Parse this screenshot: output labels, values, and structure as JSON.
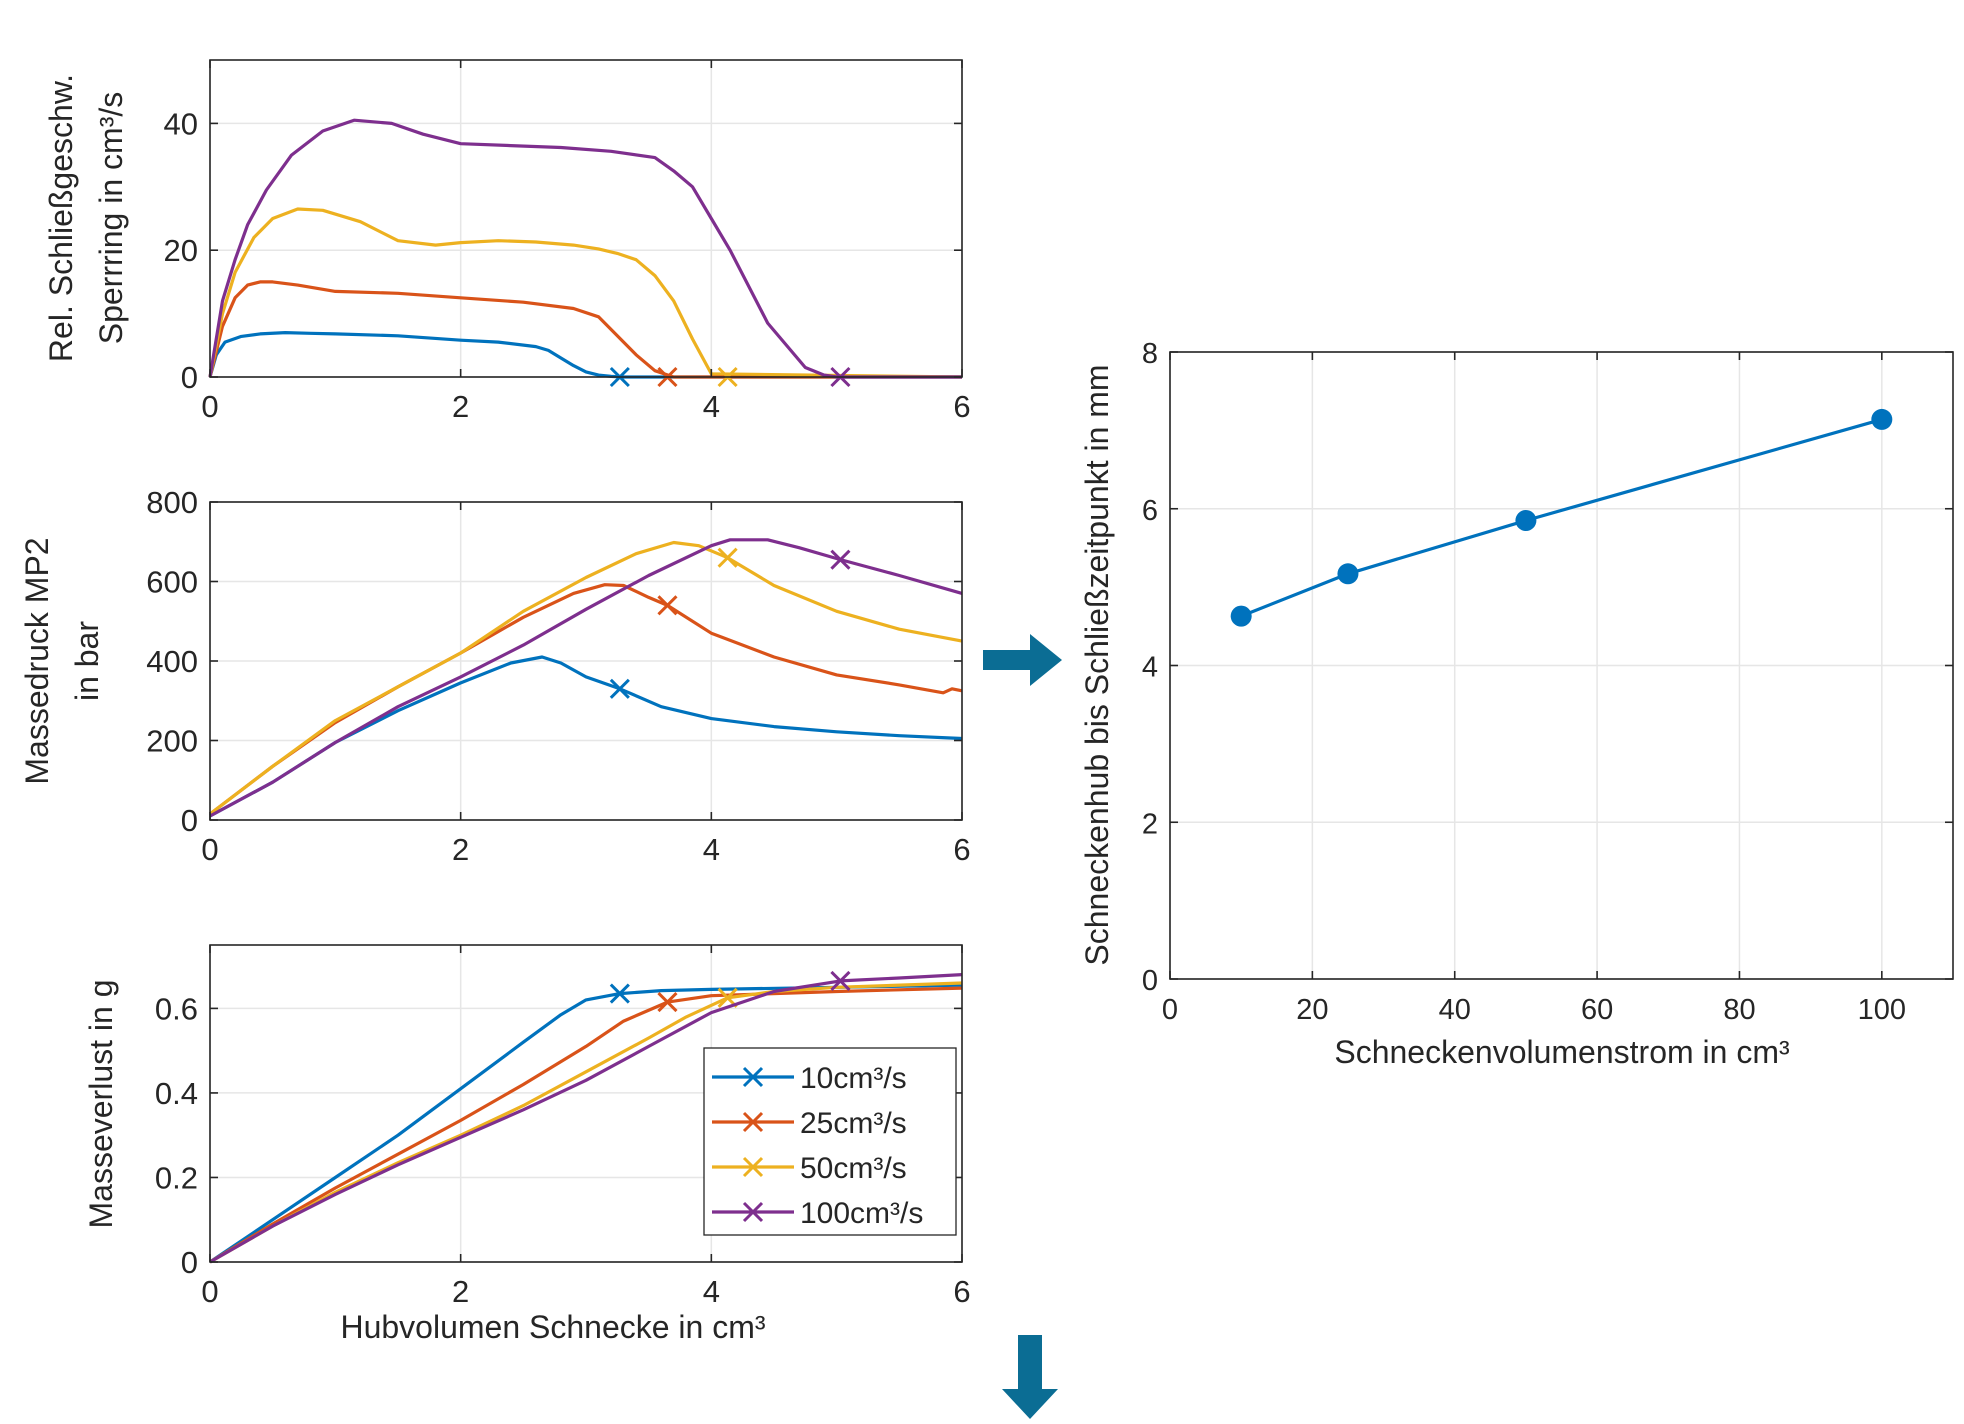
{
  "colors": {
    "s10": "#0072BD",
    "s25": "#D95319",
    "s50": "#EDB120",
    "s100": "#7E2F8E",
    "arrow": "#0B6D94",
    "grid": "#e6e6e6",
    "axis": "#262626"
  },
  "chart_data": [
    {
      "id": "speed",
      "type": "line",
      "ylabel_lines": [
        "Rel. Schließgeschw.",
        "Sperrring in cm³/s"
      ],
      "xlabel": "",
      "xlim": [
        0,
        6
      ],
      "ylim": [
        0,
        50
      ],
      "xticks": [
        0,
        2,
        4,
        6
      ],
      "yticks": [
        0,
        20,
        40
      ],
      "grid": true,
      "series": [
        {
          "key": "s10",
          "x": [
            0,
            0.05,
            0.12,
            0.25,
            0.4,
            0.6,
            0.8,
            1.0,
            1.5,
            2.0,
            2.3,
            2.6,
            2.7,
            2.8,
            2.9,
            3.0,
            3.1,
            3.2,
            3.3,
            4.0,
            6.0
          ],
          "y": [
            0,
            3.5,
            5.5,
            6.4,
            6.8,
            7.0,
            6.9,
            6.8,
            6.5,
            5.8,
            5.5,
            4.8,
            4.2,
            3.0,
            1.8,
            0.8,
            0.3,
            0.1,
            0.0,
            0.0,
            0.0
          ],
          "marker": [
            3.27,
            0
          ]
        },
        {
          "key": "s25",
          "x": [
            0,
            0.1,
            0.2,
            0.3,
            0.4,
            0.5,
            0.7,
            1.0,
            1.5,
            2.0,
            2.5,
            2.9,
            3.1,
            3.25,
            3.4,
            3.55,
            3.7,
            4.0,
            6.0
          ],
          "y": [
            0,
            8,
            12.5,
            14.5,
            15,
            15,
            14.5,
            13.5,
            13.2,
            12.5,
            11.8,
            10.8,
            9.5,
            6.5,
            3.5,
            1.0,
            0.0,
            0.0,
            0.0
          ],
          "marker": [
            3.65,
            0
          ]
        },
        {
          "key": "s50",
          "x": [
            0,
            0.1,
            0.2,
            0.35,
            0.5,
            0.7,
            0.9,
            1.2,
            1.5,
            1.8,
            2.0,
            2.3,
            2.6,
            2.9,
            3.1,
            3.25,
            3.4,
            3.55,
            3.7,
            3.85,
            4.0,
            6.0
          ],
          "y": [
            0,
            10,
            16.5,
            22,
            25,
            26.5,
            26.3,
            24.5,
            21.5,
            20.8,
            21.2,
            21.5,
            21.3,
            20.8,
            20.2,
            19.5,
            18.5,
            16,
            12,
            6,
            0.5,
            0.0
          ],
          "marker": [
            4.13,
            0
          ]
        },
        {
          "key": "s100",
          "x": [
            0,
            0.1,
            0.2,
            0.3,
            0.45,
            0.65,
            0.9,
            1.15,
            1.45,
            1.7,
            2.0,
            2.4,
            2.8,
            3.2,
            3.55,
            3.7,
            3.85,
            4.0,
            4.15,
            4.45,
            4.75,
            4.9,
            5.0,
            6.0
          ],
          "y": [
            0,
            12,
            18.5,
            24,
            29.5,
            35,
            38.8,
            40.5,
            40,
            38.3,
            36.8,
            36.5,
            36.2,
            35.6,
            34.6,
            32.5,
            30,
            25,
            20,
            8.5,
            1.5,
            0.3,
            0.0,
            0.0
          ],
          "marker": [
            5.03,
            0
          ]
        }
      ]
    },
    {
      "id": "pressure",
      "type": "line",
      "ylabel_lines": [
        "Massedruck MP2",
        "in bar"
      ],
      "xlabel": "",
      "xlim": [
        0,
        6
      ],
      "ylim": [
        0,
        800
      ],
      "xticks": [
        0,
        2,
        4,
        6
      ],
      "yticks": [
        0,
        200,
        400,
        600,
        800
      ],
      "grid": true,
      "series": [
        {
          "key": "s10",
          "x": [
            0,
            0.5,
            1.0,
            1.5,
            2.0,
            2.4,
            2.65,
            2.8,
            3.0,
            3.27,
            3.6,
            4.0,
            4.5,
            5.0,
            5.5,
            6.0
          ],
          "y": [
            10,
            95,
            195,
            275,
            345,
            395,
            410,
            395,
            360,
            330,
            285,
            255,
            235,
            222,
            212,
            205
          ],
          "marker": [
            3.27,
            330
          ]
        },
        {
          "key": "s25",
          "x": [
            0,
            0.5,
            1.0,
            1.5,
            2.0,
            2.5,
            2.9,
            3.15,
            3.3,
            3.5,
            3.65,
            4.0,
            4.5,
            5.0,
            5.5,
            5.85,
            5.92,
            6.0
          ],
          "y": [
            15,
            135,
            245,
            335,
            420,
            510,
            570,
            592,
            590,
            560,
            540,
            470,
            410,
            365,
            340,
            320,
            330,
            325
          ],
          "marker": [
            3.65,
            540
          ]
        },
        {
          "key": "s50",
          "x": [
            0,
            0.5,
            1.0,
            1.5,
            2.0,
            2.5,
            3.0,
            3.4,
            3.7,
            3.9,
            4.13,
            4.5,
            5.0,
            5.5,
            6.0
          ],
          "y": [
            15,
            135,
            250,
            335,
            420,
            525,
            610,
            670,
            698,
            690,
            660,
            590,
            525,
            480,
            450
          ],
          "marker": [
            4.13,
            660
          ]
        },
        {
          "key": "s100",
          "x": [
            0,
            0.5,
            1.0,
            1.5,
            2.0,
            2.5,
            3.0,
            3.5,
            4.0,
            4.15,
            4.45,
            4.7,
            5.03,
            5.5,
            6.0
          ],
          "y": [
            10,
            95,
            195,
            285,
            360,
            440,
            530,
            615,
            690,
            705,
            705,
            685,
            655,
            615,
            570
          ],
          "marker": [
            5.03,
            655
          ]
        }
      ]
    },
    {
      "id": "mass",
      "type": "line",
      "ylabel_lines": [
        "Masseverlust in g"
      ],
      "xlabel": "Hubvolumen Schnecke in cm³",
      "xlim": [
        0,
        6
      ],
      "ylim": [
        0,
        0.75
      ],
      "xticks": [
        0,
        2,
        4,
        6
      ],
      "yticks": [
        0,
        0.2,
        0.4,
        0.6
      ],
      "grid": true,
      "legend": {
        "position": "bottom-right",
        "entries": [
          "10cm³/s",
          "25cm³/s",
          "50cm³/s",
          "100cm³/s"
        ]
      },
      "series": [
        {
          "key": "s10",
          "x": [
            0,
            0.5,
            1.0,
            1.5,
            2.0,
            2.5,
            2.8,
            3.0,
            3.27,
            3.6,
            4.0,
            5.0,
            6.0
          ],
          "y": [
            0,
            0.1,
            0.2,
            0.3,
            0.41,
            0.52,
            0.585,
            0.62,
            0.635,
            0.642,
            0.645,
            0.65,
            0.655
          ],
          "marker": [
            3.27,
            0.635
          ]
        },
        {
          "key": "s25",
          "x": [
            0,
            0.5,
            1.0,
            1.5,
            2.0,
            2.5,
            3.0,
            3.3,
            3.65,
            4.0,
            5.0,
            6.0
          ],
          "y": [
            0,
            0.09,
            0.175,
            0.255,
            0.335,
            0.42,
            0.51,
            0.57,
            0.615,
            0.63,
            0.64,
            0.648
          ],
          "marker": [
            3.65,
            0.615
          ]
        },
        {
          "key": "s50",
          "x": [
            0,
            0.5,
            1.0,
            1.5,
            2.0,
            2.5,
            3.0,
            3.5,
            3.8,
            4.13,
            4.5,
            5.0,
            6.0
          ],
          "y": [
            0,
            0.085,
            0.165,
            0.235,
            0.3,
            0.37,
            0.45,
            0.53,
            0.58,
            0.625,
            0.64,
            0.65,
            0.66
          ],
          "marker": [
            4.13,
            0.625
          ]
        },
        {
          "key": "s100",
          "x": [
            0,
            0.5,
            1.0,
            1.5,
            2.0,
            2.5,
            3.0,
            3.5,
            4.0,
            4.5,
            5.03,
            5.5,
            6.0
          ],
          "y": [
            0,
            0.085,
            0.16,
            0.23,
            0.295,
            0.36,
            0.43,
            0.51,
            0.59,
            0.64,
            0.665,
            0.672,
            0.68
          ],
          "marker": [
            5.03,
            0.665
          ]
        }
      ]
    },
    {
      "id": "stroke",
      "type": "line",
      "ylabel_lines": [
        "Schneckenhub bis Schließzeitpunkt in mm"
      ],
      "xlabel": "Schneckenvolumenstrom in cm³",
      "xlim": [
        0,
        110
      ],
      "ylim": [
        0,
        8
      ],
      "xticks": [
        0,
        20,
        40,
        60,
        80,
        100
      ],
      "yticks": [
        0,
        2,
        4,
        6,
        8
      ],
      "grid": true,
      "series": [
        {
          "key": "s10",
          "x": [
            10,
            25,
            50,
            100
          ],
          "y": [
            4.63,
            5.17,
            5.85,
            7.14
          ],
          "markers": "circle"
        }
      ]
    }
  ]
}
